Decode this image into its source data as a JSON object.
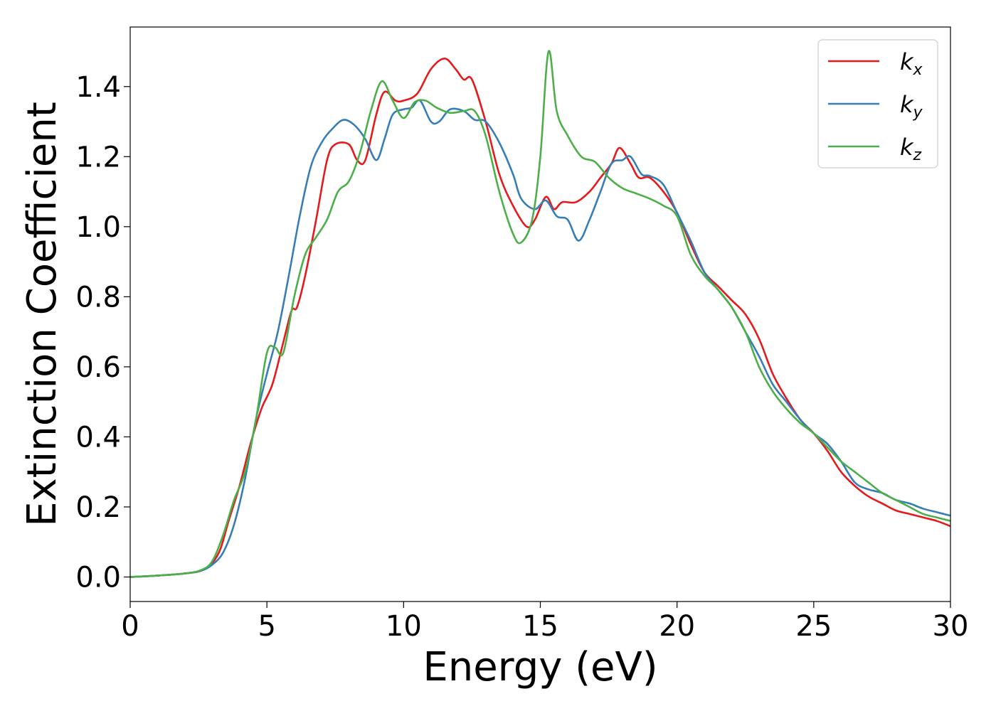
{
  "chart_data": {
    "type": "line",
    "xlabel": "Energy (eV)",
    "ylabel": "Extinction Coefficient",
    "xlim": [
      0,
      30
    ],
    "ylim": [
      -0.07,
      1.57
    ],
    "xticks": [
      0,
      5,
      10,
      15,
      20,
      25,
      30
    ],
    "xtick_labels": [
      "0",
      "5",
      "10",
      "15",
      "20",
      "25",
      "30"
    ],
    "yticks": [
      0.0,
      0.2,
      0.4,
      0.6,
      0.8,
      1.0,
      1.2,
      1.4
    ],
    "ytick_labels": [
      "0.0",
      "0.2",
      "0.4",
      "0.6",
      "0.8",
      "1.0",
      "1.2",
      "1.4"
    ],
    "grid": false,
    "legend_position": "top-right",
    "series": [
      {
        "name": "k",
        "subscript": "x",
        "color": "#e41a1c",
        "points": [
          [
            0,
            0
          ],
          [
            1,
            0.004
          ],
          [
            2,
            0.01
          ],
          [
            2.6,
            0.018
          ],
          [
            3,
            0.04
          ],
          [
            3.3,
            0.08
          ],
          [
            3.6,
            0.16
          ],
          [
            4,
            0.26
          ],
          [
            4.4,
            0.38
          ],
          [
            4.8,
            0.48
          ],
          [
            5.2,
            0.55
          ],
          [
            5.6,
            0.67
          ],
          [
            5.9,
            0.76
          ],
          [
            6.1,
            0.77
          ],
          [
            6.4,
            0.86
          ],
          [
            6.8,
            1.02
          ],
          [
            7.2,
            1.19
          ],
          [
            7.5,
            1.235
          ],
          [
            8,
            1.235
          ],
          [
            8.3,
            1.19
          ],
          [
            8.6,
            1.19
          ],
          [
            9,
            1.32
          ],
          [
            9.3,
            1.385
          ],
          [
            9.7,
            1.36
          ],
          [
            10,
            1.36
          ],
          [
            10.5,
            1.38
          ],
          [
            11,
            1.45
          ],
          [
            11.5,
            1.48
          ],
          [
            11.9,
            1.45
          ],
          [
            12.2,
            1.42
          ],
          [
            12.5,
            1.42
          ],
          [
            13,
            1.3
          ],
          [
            13.5,
            1.15
          ],
          [
            14,
            1.06
          ],
          [
            14.5,
            1.0
          ],
          [
            14.8,
            1.02
          ],
          [
            15.2,
            1.085
          ],
          [
            15.5,
            1.05
          ],
          [
            15.8,
            1.07
          ],
          [
            16.3,
            1.07
          ],
          [
            16.8,
            1.1
          ],
          [
            17.2,
            1.14
          ],
          [
            17.6,
            1.18
          ],
          [
            17.9,
            1.225
          ],
          [
            18.3,
            1.18
          ],
          [
            18.6,
            1.14
          ],
          [
            19,
            1.14
          ],
          [
            19.5,
            1.1
          ],
          [
            20,
            1.04
          ],
          [
            20.5,
            0.95
          ],
          [
            21,
            0.87
          ],
          [
            21.5,
            0.83
          ],
          [
            22,
            0.79
          ],
          [
            22.5,
            0.75
          ],
          [
            23,
            0.68
          ],
          [
            23.5,
            0.58
          ],
          [
            24,
            0.51
          ],
          [
            24.5,
            0.45
          ],
          [
            25,
            0.41
          ],
          [
            25.5,
            0.36
          ],
          [
            26,
            0.3
          ],
          [
            26.5,
            0.26
          ],
          [
            27,
            0.23
          ],
          [
            27.5,
            0.21
          ],
          [
            28,
            0.19
          ],
          [
            28.5,
            0.18
          ],
          [
            29,
            0.17
          ],
          [
            29.5,
            0.16
          ],
          [
            30,
            0.145
          ]
        ]
      },
      {
        "name": "k",
        "subscript": "y",
        "color": "#377eb8",
        "points": [
          [
            0,
            0
          ],
          [
            1,
            0.004
          ],
          [
            2,
            0.01
          ],
          [
            2.6,
            0.018
          ],
          [
            3,
            0.035
          ],
          [
            3.4,
            0.07
          ],
          [
            3.8,
            0.15
          ],
          [
            4.2,
            0.28
          ],
          [
            4.6,
            0.45
          ],
          [
            5,
            0.58
          ],
          [
            5.4,
            0.7
          ],
          [
            5.8,
            0.86
          ],
          [
            6.2,
            1.03
          ],
          [
            6.6,
            1.17
          ],
          [
            7,
            1.24
          ],
          [
            7.4,
            1.28
          ],
          [
            7.8,
            1.305
          ],
          [
            8.2,
            1.29
          ],
          [
            8.6,
            1.25
          ],
          [
            9,
            1.19
          ],
          [
            9.3,
            1.25
          ],
          [
            9.6,
            1.32
          ],
          [
            10,
            1.335
          ],
          [
            10.3,
            1.34
          ],
          [
            10.6,
            1.36
          ],
          [
            11,
            1.3
          ],
          [
            11.3,
            1.3
          ],
          [
            11.7,
            1.335
          ],
          [
            12.2,
            1.33
          ],
          [
            12.6,
            1.305
          ],
          [
            13,
            1.3
          ],
          [
            13.5,
            1.24
          ],
          [
            14,
            1.15
          ],
          [
            14.3,
            1.08
          ],
          [
            14.8,
            1.05
          ],
          [
            15.2,
            1.075
          ],
          [
            15.6,
            1.03
          ],
          [
            16,
            1.02
          ],
          [
            16.4,
            0.96
          ],
          [
            16.8,
            1.02
          ],
          [
            17.2,
            1.1
          ],
          [
            17.6,
            1.18
          ],
          [
            18,
            1.19
          ],
          [
            18.3,
            1.2
          ],
          [
            18.7,
            1.15
          ],
          [
            19,
            1.145
          ],
          [
            19.5,
            1.12
          ],
          [
            20,
            1.04
          ],
          [
            20.5,
            0.96
          ],
          [
            21,
            0.87
          ],
          [
            21.5,
            0.82
          ],
          [
            22,
            0.77
          ],
          [
            22.5,
            0.7
          ],
          [
            23,
            0.63
          ],
          [
            23.5,
            0.55
          ],
          [
            24,
            0.5
          ],
          [
            24.5,
            0.45
          ],
          [
            25,
            0.41
          ],
          [
            25.5,
            0.38
          ],
          [
            26,
            0.33
          ],
          [
            26.5,
            0.27
          ],
          [
            27,
            0.25
          ],
          [
            27.5,
            0.24
          ],
          [
            28,
            0.22
          ],
          [
            28.5,
            0.21
          ],
          [
            29,
            0.195
          ],
          [
            29.5,
            0.185
          ],
          [
            30,
            0.175
          ]
        ]
      },
      {
        "name": "k",
        "subscript": "z",
        "color": "#4daf4a",
        "points": [
          [
            0,
            0
          ],
          [
            1,
            0.004
          ],
          [
            2,
            0.01
          ],
          [
            2.6,
            0.02
          ],
          [
            3,
            0.045
          ],
          [
            3.4,
            0.12
          ],
          [
            3.8,
            0.22
          ],
          [
            4.2,
            0.3
          ],
          [
            4.6,
            0.45
          ],
          [
            5,
            0.64
          ],
          [
            5.3,
            0.655
          ],
          [
            5.6,
            0.64
          ],
          [
            6,
            0.8
          ],
          [
            6.4,
            0.92
          ],
          [
            6.8,
            0.97
          ],
          [
            7.2,
            1.02
          ],
          [
            7.6,
            1.1
          ],
          [
            8,
            1.13
          ],
          [
            8.4,
            1.21
          ],
          [
            8.8,
            1.33
          ],
          [
            9.2,
            1.415
          ],
          [
            9.6,
            1.36
          ],
          [
            10,
            1.31
          ],
          [
            10.4,
            1.355
          ],
          [
            10.8,
            1.36
          ],
          [
            11.2,
            1.34
          ],
          [
            11.7,
            1.325
          ],
          [
            12.2,
            1.33
          ],
          [
            12.6,
            1.33
          ],
          [
            13,
            1.26
          ],
          [
            13.5,
            1.1
          ],
          [
            14,
            0.98
          ],
          [
            14.3,
            0.955
          ],
          [
            14.7,
            1.02
          ],
          [
            15,
            1.2
          ],
          [
            15.3,
            1.5
          ],
          [
            15.6,
            1.33
          ],
          [
            16,
            1.26
          ],
          [
            16.5,
            1.2
          ],
          [
            17,
            1.185
          ],
          [
            17.5,
            1.14
          ],
          [
            18,
            1.11
          ],
          [
            18.5,
            1.095
          ],
          [
            19,
            1.08
          ],
          [
            19.5,
            1.06
          ],
          [
            20,
            1.03
          ],
          [
            20.5,
            0.92
          ],
          [
            21,
            0.86
          ],
          [
            21.5,
            0.82
          ],
          [
            22,
            0.77
          ],
          [
            22.5,
            0.7
          ],
          [
            23,
            0.6
          ],
          [
            23.5,
            0.53
          ],
          [
            24,
            0.48
          ],
          [
            24.5,
            0.44
          ],
          [
            25,
            0.41
          ],
          [
            25.5,
            0.37
          ],
          [
            26,
            0.33
          ],
          [
            26.5,
            0.3
          ],
          [
            27,
            0.27
          ],
          [
            27.5,
            0.24
          ],
          [
            28,
            0.22
          ],
          [
            28.5,
            0.2
          ],
          [
            29,
            0.18
          ],
          [
            29.5,
            0.17
          ],
          [
            30,
            0.16
          ]
        ]
      }
    ]
  }
}
